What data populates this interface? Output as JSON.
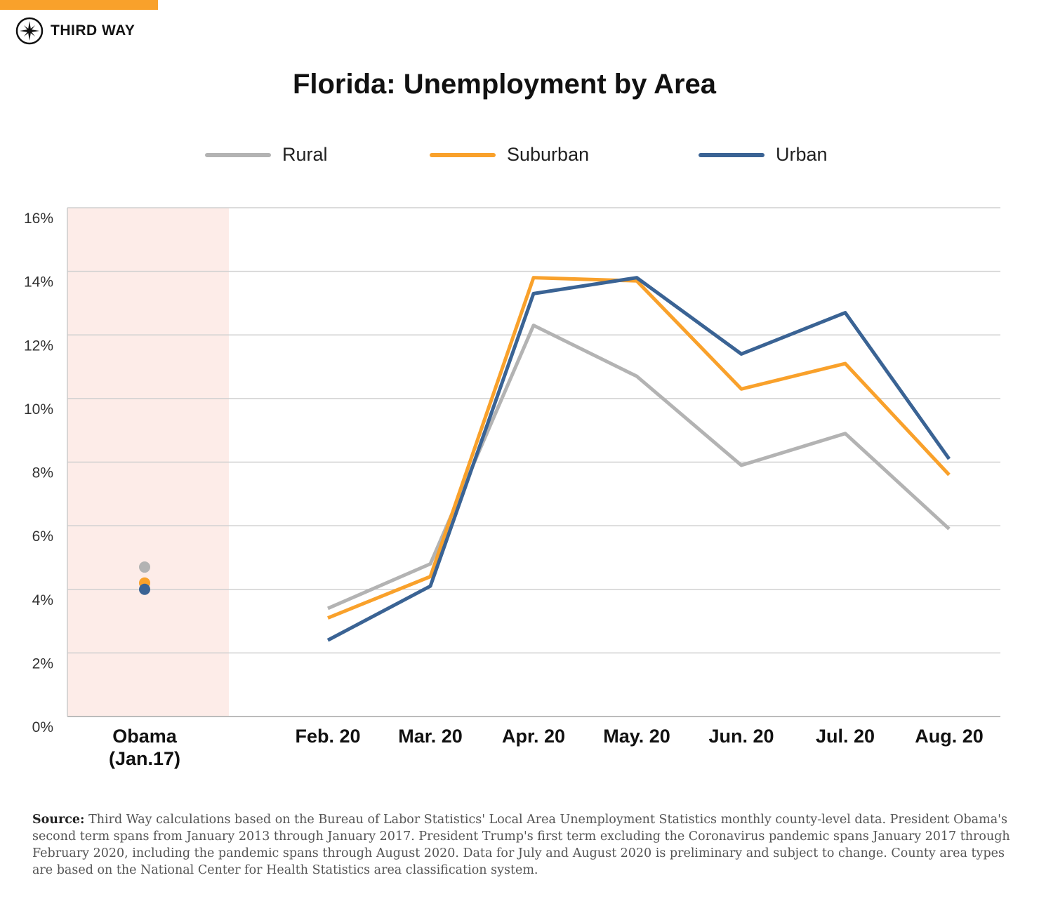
{
  "brand": {
    "name": "THIRD WAY",
    "accent": "#f9a12b"
  },
  "chart_data": {
    "type": "line",
    "title": "Florida: Unemployment by Area",
    "categories": [
      "Obama (Jan.17)",
      "Feb. 20",
      "Mar. 20",
      "Apr. 20",
      "May. 20",
      "Jun. 20",
      "Jul. 20",
      "Aug. 20"
    ],
    "category_lines": [
      [
        "Obama",
        "(Jan.17)"
      ],
      [
        "Feb. 20"
      ],
      [
        "Mar. 20"
      ],
      [
        "Apr. 20"
      ],
      [
        "May. 20"
      ],
      [
        "Jun. 20"
      ],
      [
        "Jul. 20"
      ],
      [
        "Aug. 20"
      ]
    ],
    "ylim": [
      0,
      16
    ],
    "yticks": [
      "0%",
      "2%",
      "4%",
      "6%",
      "8%",
      "10%",
      "12%",
      "14%",
      "16%"
    ],
    "grid": true,
    "legend_position": "top",
    "highlight_band": {
      "category": "Obama (Jan.17)",
      "color": "#fdece8"
    },
    "series": [
      {
        "name": "Rural",
        "color": "#b3b3b3",
        "values": [
          4.7,
          3.4,
          4.8,
          12.3,
          10.7,
          7.9,
          8.9,
          5.9
        ]
      },
      {
        "name": "Suburban",
        "color": "#f9a12b",
        "values": [
          4.2,
          3.1,
          4.4,
          13.8,
          13.7,
          10.3,
          11.1,
          7.6
        ]
      },
      {
        "name": "Urban",
        "color": "#3a6394",
        "values": [
          4.0,
          2.4,
          4.1,
          13.3,
          13.8,
          11.4,
          12.7,
          8.1
        ]
      }
    ]
  },
  "source": {
    "label": "Source:",
    "text": "Third Way calculations based on the Bureau of Labor Statistics' Local Area Unemployment Statistics monthly county-level data. President Obama's second term spans from January 2013 through January 2017. President Trump's first term excluding the Coronavirus pandemic spans January 2017 through February 2020, including the pandemic spans through August 2020. Data for July and August 2020 is preliminary and subject to change. County area types are based on the National Center for Health Statistics area classification system."
  }
}
